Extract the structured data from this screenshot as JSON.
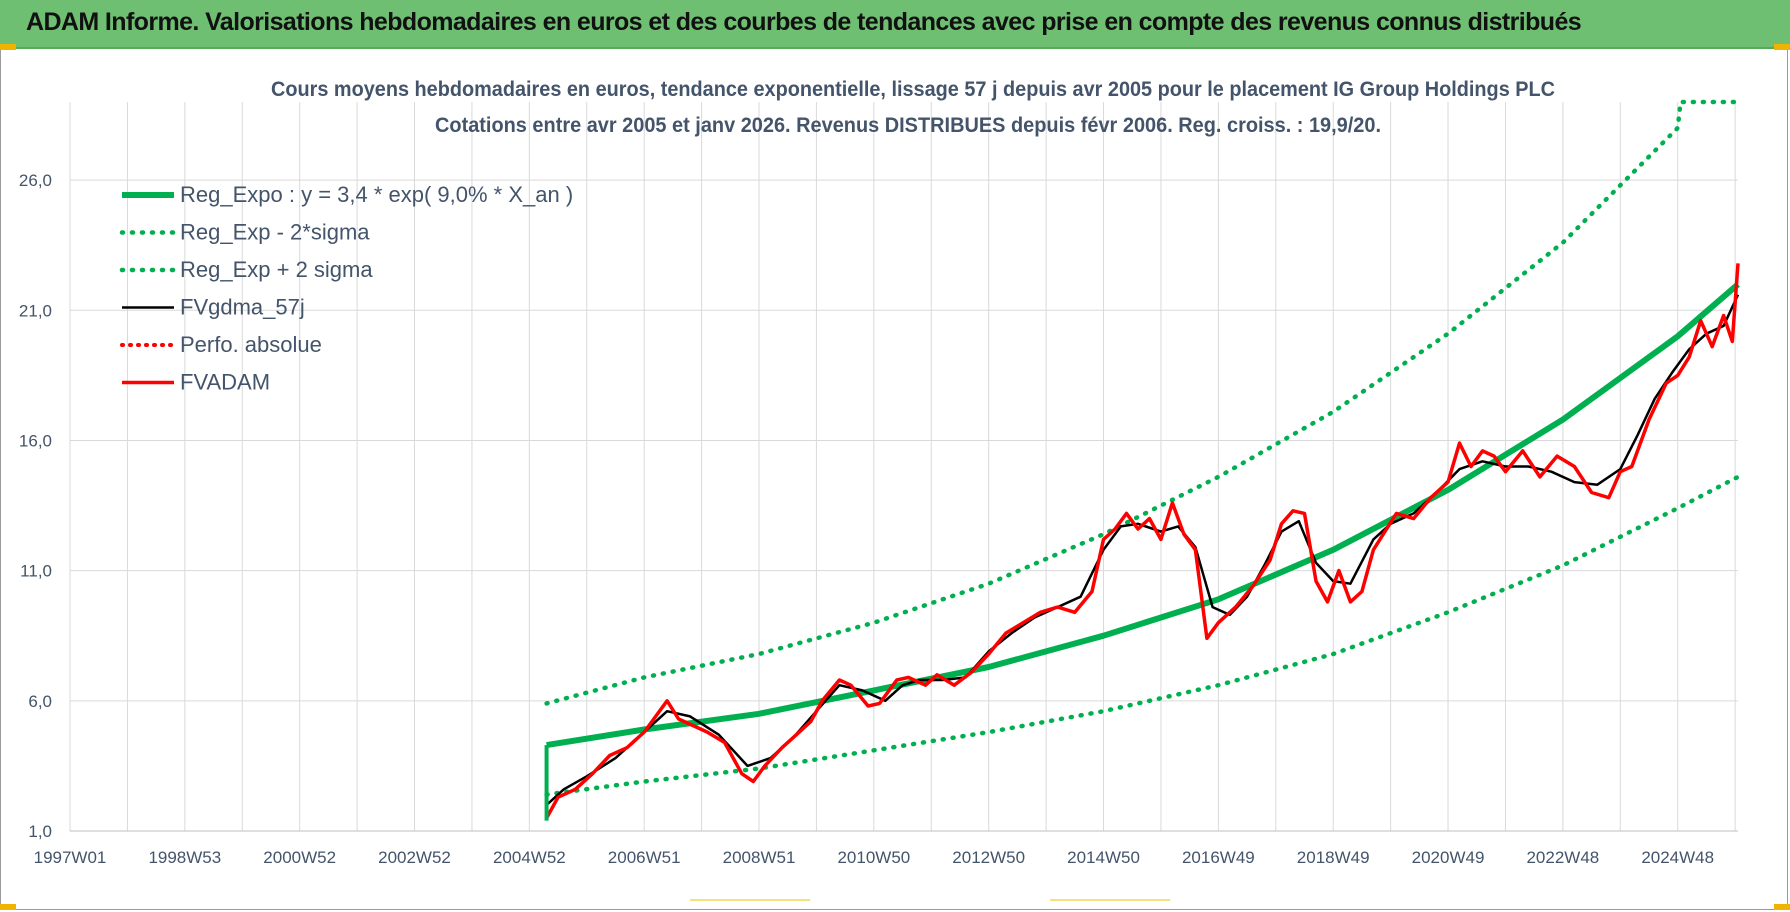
{
  "header": {
    "title": "ADAM Informe. Valorisations hebdomadaires en euros et des courbes de tendances avec prise en compte des revenus connus distribués"
  },
  "colors": {
    "header_bg": "#6fbf73",
    "green": "#00b050",
    "red": "#ff0000",
    "black": "#000000",
    "grid": "#d9d9d9",
    "text": "#44546a"
  },
  "chart_data": {
    "type": "line",
    "title": "Cours moyens hebdomadaires en euros, tendance exponentielle, lissage 57 j depuis avr 2005 pour le placement IG Group Holdings PLC",
    "subtitle": "Cotations entre avr 2005 et janv 2026. Revenus DISTRIBUES depuis févr 2006. Reg. croiss. : 19,9/20.",
    "ylim": [
      1.0,
      29.0
    ],
    "yticks": [
      "1,0",
      "6,0",
      "11,0",
      "16,0",
      "21,0",
      "26,0"
    ],
    "ytick_values": [
      1,
      6,
      11,
      16,
      21,
      26
    ],
    "xlim": [
      1997.0,
      2026.05
    ],
    "xticks": [
      "1997W01",
      "1998W53",
      "2000W52",
      "2002W52",
      "2004W52",
      "2006W51",
      "2008W51",
      "2010W50",
      "2012W50",
      "2014W50",
      "2016W49",
      "2018W49",
      "2020W49",
      "2022W48",
      "2024W48"
    ],
    "xtick_values": [
      1997.0,
      1999.0,
      2001.0,
      2003.0,
      2005.0,
      2007.0,
      2009.0,
      2011.0,
      2013.0,
      2015.0,
      2017.0,
      2019.0,
      2021.0,
      2023.0,
      2025.0
    ],
    "grid": true,
    "legend_position": "top-left",
    "legend": [
      {
        "label": "Reg_Expo : y = 3,4 * exp( 9,0% *  X_an )",
        "color": "#00b050",
        "style": "solid"
      },
      {
        "label": "Reg_Exp - 2*sigma",
        "color": "#00b050",
        "style": "dotted"
      },
      {
        "label": "Reg_Exp + 2 sigma",
        "color": "#00b050",
        "style": "dotted"
      },
      {
        "label": "FVgdma_57j",
        "color": "#000000",
        "style": "solid"
      },
      {
        "label": "Perfo. absolue",
        "color": "#ff0000",
        "style": "dotted"
      },
      {
        "label": "FVADAM",
        "color": "#ff0000",
        "style": "solid"
      }
    ],
    "series": [
      {
        "name": "Reg_Expo : y = 3,4 * exp( 9,0% *  X_an )",
        "x": [
          2005.3,
          2007.0,
          2009.0,
          2011.0,
          2013.0,
          2015.0,
          2017.0,
          2019.0,
          2021.0,
          2023.0,
          2025.0,
          2026.05
        ],
        "y": [
          4.3,
          4.9,
          5.5,
          6.4,
          7.3,
          8.5,
          9.9,
          11.8,
          14.1,
          16.8,
          20.0,
          22.0
        ]
      },
      {
        "name": "Reg_Exp - 2*sigma",
        "x": [
          2005.3,
          2007.0,
          2009.0,
          2011.0,
          2013.0,
          2015.0,
          2017.0,
          2019.0,
          2021.0,
          2023.0,
          2025.0,
          2026.05
        ],
        "y": [
          2.4,
          2.9,
          3.4,
          4.1,
          4.8,
          5.6,
          6.6,
          7.8,
          9.4,
          11.2,
          13.4,
          14.6
        ]
      },
      {
        "name": "Reg_Exp + 2 sigma",
        "x": [
          2005.3,
          2007.0,
          2009.0,
          2011.0,
          2013.0,
          2015.0,
          2017.0,
          2019.0,
          2021.0,
          2023.0,
          2025.0,
          2025.05,
          2026.05
        ],
        "y": [
          5.9,
          6.9,
          7.8,
          9.0,
          10.5,
          12.4,
          14.6,
          17.1,
          20.1,
          23.6,
          28.0,
          29.0,
          29.0
        ]
      },
      {
        "name": "FVgdma_57j",
        "x": [
          2005.3,
          2005.6,
          2006.0,
          2006.5,
          2007.0,
          2007.4,
          2007.8,
          2008.3,
          2008.8,
          2009.2,
          2009.6,
          2010.0,
          2010.4,
          2010.8,
          2011.2,
          2011.5,
          2011.8,
          2012.2,
          2012.6,
          2013.0,
          2013.4,
          2013.8,
          2014.2,
          2014.6,
          2015.0,
          2015.3,
          2015.6,
          2016.0,
          2016.3,
          2016.6,
          2016.9,
          2017.2,
          2017.5,
          2017.8,
          2018.1,
          2018.4,
          2018.7,
          2019.0,
          2019.3,
          2019.7,
          2020.0,
          2020.4,
          2020.8,
          2021.2,
          2021.6,
          2022.0,
          2022.4,
          2022.8,
          2023.2,
          2023.6,
          2024.0,
          2024.3,
          2024.6,
          2024.9,
          2025.2,
          2025.5,
          2025.8,
          2026.05
        ],
        "y": [
          2.0,
          2.6,
          3.1,
          3.8,
          4.8,
          5.6,
          5.4,
          4.7,
          3.5,
          3.8,
          4.6,
          5.6,
          6.6,
          6.4,
          6.0,
          6.6,
          6.8,
          6.8,
          6.9,
          7.9,
          8.6,
          9.2,
          9.6,
          10.0,
          11.8,
          12.7,
          12.8,
          12.5,
          12.7,
          11.9,
          9.6,
          9.3,
          10.0,
          11.2,
          12.5,
          12.9,
          11.3,
          10.6,
          10.5,
          12.2,
          12.8,
          13.2,
          14.0,
          14.9,
          15.2,
          15.0,
          15.0,
          14.8,
          14.4,
          14.3,
          14.9,
          16.2,
          17.6,
          18.6,
          19.5,
          20.1,
          20.4,
          21.6
        ]
      },
      {
        "name": "FVADAM",
        "x": [
          2005.3,
          2005.5,
          2005.8,
          2006.1,
          2006.4,
          2006.7,
          2007.0,
          2007.2,
          2007.4,
          2007.6,
          2007.9,
          2008.1,
          2008.4,
          2008.7,
          2008.9,
          2009.1,
          2009.4,
          2009.6,
          2009.9,
          2010.1,
          2010.4,
          2010.6,
          2010.9,
          2011.1,
          2011.4,
          2011.6,
          2011.9,
          2012.1,
          2012.4,
          2012.7,
          2013.0,
          2013.3,
          2013.6,
          2013.9,
          2014.2,
          2014.5,
          2014.8,
          2015.0,
          2015.2,
          2015.4,
          2015.6,
          2015.8,
          2016.0,
          2016.2,
          2016.4,
          2016.6,
          2016.8,
          2017.0,
          2017.3,
          2017.6,
          2017.9,
          2018.1,
          2018.3,
          2018.5,
          2018.7,
          2018.9,
          2019.1,
          2019.3,
          2019.5,
          2019.7,
          2019.9,
          2020.1,
          2020.4,
          2020.7,
          2021.0,
          2021.2,
          2021.4,
          2021.6,
          2021.8,
          2022.0,
          2022.3,
          2022.6,
          2022.9,
          2023.2,
          2023.5,
          2023.8,
          2024.0,
          2024.2,
          2024.5,
          2024.8,
          2025.0,
          2025.2,
          2025.4,
          2025.6,
          2025.8,
          2025.95,
          2026.05
        ],
        "y": [
          1.5,
          2.3,
          2.6,
          3.2,
          3.9,
          4.2,
          4.8,
          5.4,
          6.0,
          5.3,
          5.0,
          4.8,
          4.4,
          3.2,
          2.9,
          3.5,
          4.2,
          4.6,
          5.2,
          6.0,
          6.8,
          6.6,
          5.8,
          5.9,
          6.8,
          6.9,
          6.6,
          7.0,
          6.6,
          7.1,
          7.8,
          8.6,
          9.0,
          9.4,
          9.6,
          9.4,
          10.2,
          12.2,
          12.6,
          13.2,
          12.6,
          13.0,
          12.2,
          13.6,
          12.4,
          11.8,
          8.4,
          9.0,
          9.6,
          10.4,
          11.4,
          12.8,
          13.3,
          13.2,
          10.6,
          9.8,
          11.0,
          9.8,
          10.2,
          11.8,
          12.5,
          13.2,
          13.0,
          13.8,
          14.4,
          15.9,
          15.0,
          15.6,
          15.4,
          14.8,
          15.6,
          14.6,
          15.4,
          15.0,
          14.0,
          13.8,
          14.8,
          15.0,
          16.8,
          18.2,
          18.5,
          19.2,
          20.6,
          19.6,
          20.8,
          19.8,
          22.8
        ]
      }
    ]
  }
}
